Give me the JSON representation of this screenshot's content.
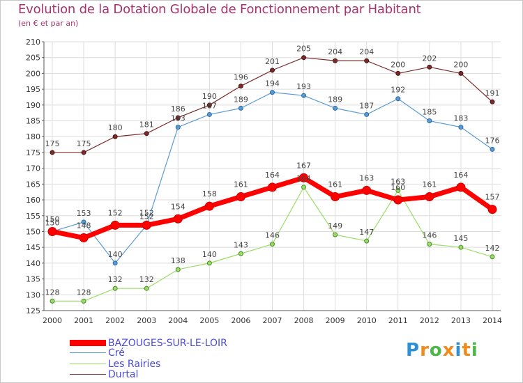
{
  "header": {
    "title": "Evolution de la Dotation Globale de Fonctionnement par Habitant",
    "subtitle": "(en € et par an)"
  },
  "logo": {
    "text": "Proxiti",
    "colors": [
      "#2e8fd6",
      "#f08c1e",
      "#4cb848",
      "#f08c1e",
      "#2e8fd6",
      "#f08c1e",
      "#4cb848"
    ]
  },
  "chart_data": {
    "type": "line",
    "title": "Evolution de la Dotation Globale de Fonctionnement par Habitant",
    "subtitle": "(en € et par an)",
    "xlabel": "",
    "ylabel": "",
    "x": [
      "2000",
      "2001",
      "2002",
      "2003",
      "2004",
      "2005",
      "2006",
      "2007",
      "2008",
      "2009",
      "2010",
      "2011",
      "2012",
      "2013",
      "2014"
    ],
    "ylim": [
      125,
      210
    ],
    "yticks": [
      125,
      130,
      135,
      140,
      145,
      150,
      155,
      160,
      165,
      170,
      175,
      180,
      185,
      190,
      195,
      200,
      205,
      210
    ],
    "grid": true,
    "legend_position": "bottom-left",
    "series": [
      {
        "name": "BAZOUGES-SUR-LE-LOIR",
        "color": "#ff0000",
        "values": [
          150,
          148,
          152,
          152,
          154,
          158,
          161,
          164,
          167,
          161,
          163,
          160,
          161,
          164,
          157
        ]
      },
      {
        "name": "Cré",
        "color": "#5b9bd5",
        "values": [
          150,
          153,
          140,
          152,
          183,
          187,
          189,
          194,
          193,
          189,
          187,
          192,
          185,
          183,
          176
        ]
      },
      {
        "name": "Les Rairies",
        "color": "#99dd66",
        "values": [
          128,
          128,
          132,
          132,
          138,
          140,
          143,
          146,
          164,
          149,
          147,
          163,
          146,
          145,
          142
        ]
      },
      {
        "name": "Durtal",
        "color": "#7b2a2a",
        "values": [
          175,
          175,
          180,
          181,
          186,
          190,
          196,
          201,
          205,
          204,
          204,
          200,
          202,
          200,
          191
        ]
      }
    ]
  }
}
